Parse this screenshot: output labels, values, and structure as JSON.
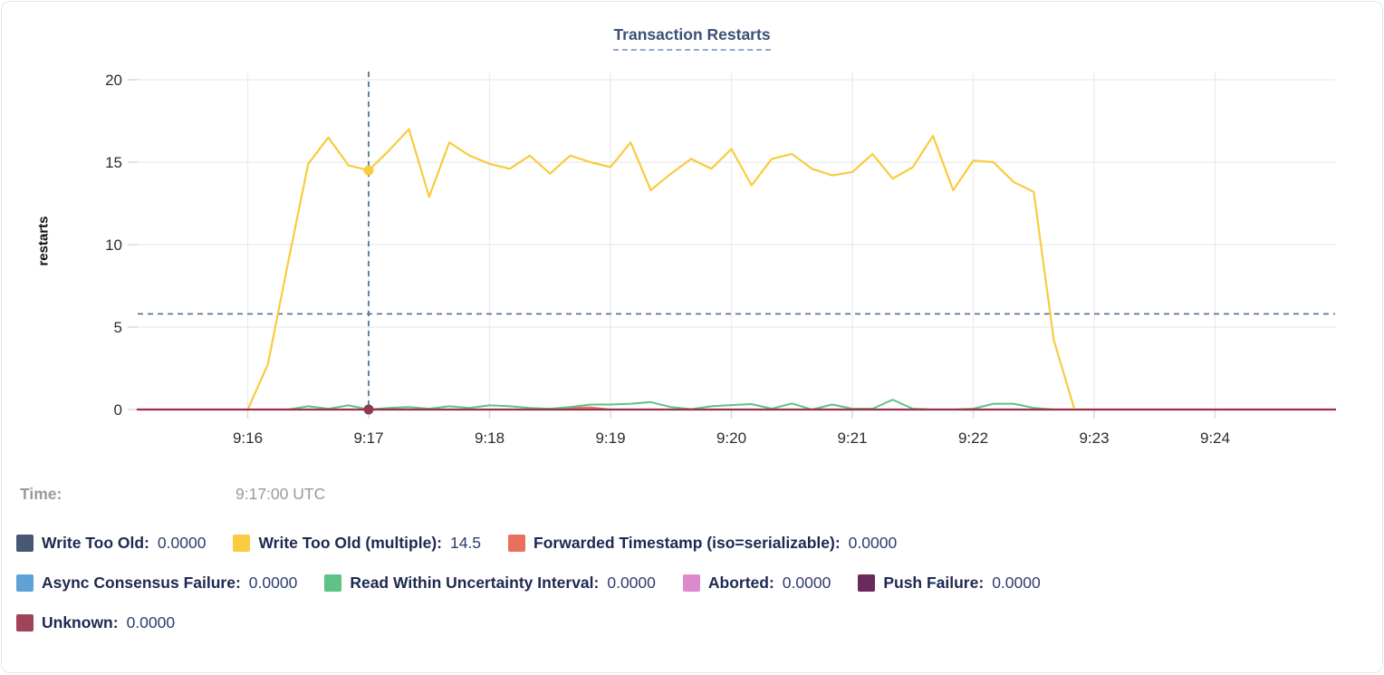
{
  "title": "Transaction Restarts",
  "hover": {
    "time_label": "Time:",
    "time_value": "9:17:00 UTC"
  },
  "legend": {
    "rows": [
      [
        {
          "label": "Write Too Old:",
          "value": "0.0000",
          "color": "#475872"
        },
        {
          "label": "Write Too Old (multiple):",
          "value": "14.5",
          "color": "#F9CB3E"
        },
        {
          "label": "Forwarded Timestamp (iso=serializable):",
          "value": "0.0000",
          "color": "#E8705F"
        }
      ],
      [
        {
          "label": "Async Consensus Failure:",
          "value": "0.0000",
          "color": "#5FA2D7"
        },
        {
          "label": "Read Within Uncertainty Interval:",
          "value": "0.0000",
          "color": "#5DC283"
        },
        {
          "label": "Aborted:",
          "value": "0.0000",
          "color": "#DB8BCD"
        },
        {
          "label": "Push Failure:",
          "value": "0.0000",
          "color": "#6B2A5C"
        }
      ],
      [
        {
          "label": "Unknown:",
          "value": "0.0000",
          "color": "#A04458"
        }
      ]
    ]
  },
  "chart_data": {
    "type": "line",
    "title": "Transaction Restarts",
    "xlabel": "",
    "ylabel": "restarts",
    "ylim": [
      0,
      20
    ],
    "yticks": [
      0,
      5,
      10,
      15,
      20
    ],
    "x_unit": "seconds since 9:16:00 UTC",
    "xticks": [
      {
        "t": 0,
        "label": "9:16"
      },
      {
        "t": 60,
        "label": "9:17"
      },
      {
        "t": 120,
        "label": "9:18"
      },
      {
        "t": 180,
        "label": "9:19"
      },
      {
        "t": 240,
        "label": "9:20"
      },
      {
        "t": 300,
        "label": "9:21"
      },
      {
        "t": 360,
        "label": "9:22"
      },
      {
        "t": 420,
        "label": "9:23"
      },
      {
        "t": 480,
        "label": "9:24"
      }
    ],
    "grid": true,
    "legend_position": "bottom",
    "crosshair": {
      "t": 60,
      "time": "9:17:00 UTC",
      "hline_value": 5.8
    },
    "hover_points": [
      {
        "series": "Write Too Old (multiple)",
        "t": 60,
        "value": 14.5,
        "color": "#F9CB3E"
      },
      {
        "series": "Unknown",
        "t": 60,
        "value": 0,
        "color": "#8F3A52"
      }
    ],
    "series": [
      {
        "name": "Write Too Old",
        "color": "#475872",
        "width": 2,
        "points": [
          [
            -55,
            0
          ],
          [
            540,
            0
          ]
        ]
      },
      {
        "name": "Async Consensus Failure",
        "color": "#5FA2D7",
        "width": 2,
        "points": [
          [
            -55,
            0
          ],
          [
            540,
            0
          ]
        ]
      },
      {
        "name": "Aborted",
        "color": "#DB8BCD",
        "width": 2,
        "points": [
          [
            -55,
            0
          ],
          [
            540,
            0
          ]
        ]
      },
      {
        "name": "Push Failure",
        "color": "#6B2A5C",
        "width": 2,
        "points": [
          [
            -55,
            0
          ],
          [
            540,
            0
          ]
        ]
      },
      {
        "name": "Forwarded Timestamp (iso=serializable)",
        "color": "#E8705F",
        "width": 2,
        "points": [
          [
            0,
            0
          ],
          [
            150,
            0
          ],
          [
            160,
            0.1
          ],
          [
            170,
            0.13
          ],
          [
            180,
            0
          ],
          [
            410,
            0
          ]
        ]
      },
      {
        "name": "Read Within Uncertainty Interval",
        "color": "#5DC283",
        "width": 2,
        "points": [
          [
            20,
            0
          ],
          [
            30,
            0.2
          ],
          [
            40,
            0.05
          ],
          [
            50,
            0.25
          ],
          [
            60,
            0
          ],
          [
            70,
            0.1
          ],
          [
            80,
            0.15
          ],
          [
            90,
            0.05
          ],
          [
            100,
            0.2
          ],
          [
            110,
            0.1
          ],
          [
            120,
            0.25
          ],
          [
            130,
            0.2
          ],
          [
            140,
            0.1
          ],
          [
            150,
            0.05
          ],
          [
            160,
            0.15
          ],
          [
            170,
            0.3
          ],
          [
            180,
            0.3
          ],
          [
            190,
            0.35
          ],
          [
            200,
            0.45
          ],
          [
            210,
            0.15
          ],
          [
            220,
            0.02
          ],
          [
            230,
            0.2
          ],
          [
            240,
            0.27
          ],
          [
            250,
            0.33
          ],
          [
            260,
            0.05
          ],
          [
            270,
            0.37
          ],
          [
            280,
            0
          ],
          [
            290,
            0.3
          ],
          [
            300,
            0.05
          ],
          [
            310,
            0.05
          ],
          [
            320,
            0.6
          ],
          [
            330,
            0.05
          ],
          [
            340,
            0
          ],
          [
            350,
            0
          ],
          [
            360,
            0.05
          ],
          [
            370,
            0.35
          ],
          [
            380,
            0.35
          ],
          [
            390,
            0.1
          ],
          [
            400,
            0
          ]
        ]
      },
      {
        "name": "Write Too Old (multiple)",
        "color": "#F9CB3E",
        "width": 2.2,
        "points": [
          [
            0,
            0
          ],
          [
            10,
            2.75
          ],
          [
            20,
            8.9
          ],
          [
            30,
            14.9
          ],
          [
            40,
            16.5
          ],
          [
            50,
            14.8
          ],
          [
            60,
            14.5
          ],
          [
            70,
            15.7
          ],
          [
            80,
            17.0
          ],
          [
            90,
            12.9
          ],
          [
            100,
            16.2
          ],
          [
            110,
            15.4
          ],
          [
            120,
            14.9
          ],
          [
            130,
            14.6
          ],
          [
            140,
            15.4
          ],
          [
            150,
            14.3
          ],
          [
            160,
            15.4
          ],
          [
            170,
            15.0
          ],
          [
            180,
            14.7
          ],
          [
            190,
            16.2
          ],
          [
            200,
            13.3
          ],
          [
            210,
            14.3
          ],
          [
            220,
            15.2
          ],
          [
            230,
            14.6
          ],
          [
            240,
            15.8
          ],
          [
            250,
            13.6
          ],
          [
            260,
            15.2
          ],
          [
            270,
            15.5
          ],
          [
            280,
            14.6
          ],
          [
            290,
            14.2
          ],
          [
            300,
            14.4
          ],
          [
            310,
            15.5
          ],
          [
            320,
            14.0
          ],
          [
            330,
            14.7
          ],
          [
            340,
            16.6
          ],
          [
            350,
            13.3
          ],
          [
            360,
            15.1
          ],
          [
            370,
            15.0
          ],
          [
            380,
            13.8
          ],
          [
            390,
            13.2
          ],
          [
            400,
            4.2
          ],
          [
            410,
            0.1
          ]
        ]
      },
      {
        "name": "Unknown",
        "color": "#9B3148",
        "width": 2.2,
        "points": [
          [
            -55,
            0
          ],
          [
            540,
            0
          ]
        ]
      }
    ]
  }
}
